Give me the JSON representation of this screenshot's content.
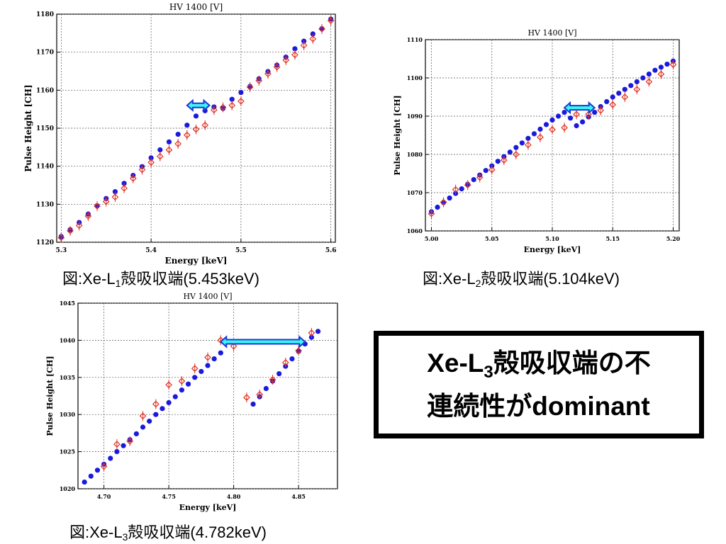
{
  "captions": {
    "c1": {
      "prefix": "図:Xe-L",
      "sub": "1",
      "suffix": "殻吸収端(5.453keV)"
    },
    "c2": {
      "prefix": "図:Xe-L",
      "sub": "2",
      "suffix": "殻吸収端(5.104keV)"
    },
    "c3": {
      "prefix": "図:Xe-L",
      "sub": "3",
      "suffix": "殻吸収端(4.782keV)"
    }
  },
  "callout": {
    "line1_prefix": "Xe-L",
    "line1_sub": "3",
    "line1_suffix": "殻吸収端の不",
    "line2": "連続性がdominant"
  },
  "colors": {
    "data_points": "#1a1adc",
    "reference_points": "#e03020",
    "arrow": "#1a3ad0",
    "arrow_cyan": "#3df5f5"
  },
  "chart_data": [
    {
      "type": "scatter",
      "title": "HV 1400 [V]",
      "xlabel": "Energy [keV]",
      "ylabel": "Pulse Height [CH]",
      "xlim": [
        5.295,
        5.605
      ],
      "ylim": [
        1120,
        1180
      ],
      "xticks": [
        5.3,
        5.4,
        5.5,
        5.6
      ],
      "xtick_labels": [
        "5.3",
        "5.4",
        "5.5",
        "5.6"
      ],
      "yticks": [
        1120,
        1130,
        1140,
        1150,
        1160,
        1170,
        1180
      ],
      "grid": true,
      "series": [
        {
          "marker": "filled-circle",
          "color": "blue",
          "x": [
            5.3,
            5.31,
            5.32,
            5.33,
            5.34,
            5.35,
            5.36,
            5.37,
            5.38,
            5.39,
            5.4,
            5.41,
            5.42,
            5.43,
            5.44,
            5.45,
            5.46,
            5.47,
            5.48,
            5.49,
            5.5,
            5.51,
            5.52,
            5.53,
            5.54,
            5.55,
            5.56,
            5.57,
            5.58,
            5.59,
            5.6
          ],
          "y": [
            1121.5,
            1123.3,
            1125.2,
            1127.4,
            1129.6,
            1131.5,
            1133.3,
            1135.5,
            1137.6,
            1139.9,
            1142.2,
            1144.3,
            1146.4,
            1148.4,
            1150.8,
            1153.2,
            1154.6,
            1155.6,
            1155.2,
            1157.6,
            1159.4,
            1161.0,
            1163.0,
            1164.9,
            1166.6,
            1168.7,
            1170.9,
            1172.9,
            1174.8,
            1176.2,
            1178.7
          ]
        },
        {
          "marker": "open-diamond",
          "color": "red",
          "x": [
            5.3,
            5.31,
            5.32,
            5.33,
            5.34,
            5.35,
            5.36,
            5.37,
            5.38,
            5.39,
            5.4,
            5.41,
            5.42,
            5.43,
            5.44,
            5.45,
            5.46,
            5.47,
            5.48,
            5.49,
            5.5,
            5.51,
            5.52,
            5.53,
            5.54,
            5.55,
            5.56,
            5.57,
            5.58,
            5.59,
            5.6
          ],
          "y": [
            1121.2,
            1123.0,
            1124.4,
            1126.9,
            1129.5,
            1130.7,
            1131.9,
            1134.2,
            1136.8,
            1139.1,
            1141.0,
            1142.6,
            1144.3,
            1145.9,
            1148.2,
            1149.7,
            1150.8,
            1154.8,
            1155.5,
            1156.0,
            1157.1,
            1160.8,
            1162.5,
            1164.3,
            1166.1,
            1167.9,
            1169.3,
            1171.8,
            1173.5,
            1176.1,
            1178.3
          ]
        }
      ],
      "annotation": {
        "type": "double-arrow",
        "x": [
          5.44,
          5.465
        ],
        "y": 1156
      }
    },
    {
      "type": "scatter",
      "title": "HV 1400 [V]",
      "xlabel": "Energy [keV]",
      "ylabel": "Pulse Height [CH]",
      "xlim": [
        4.995,
        5.205
      ],
      "ylim": [
        1060,
        1110
      ],
      "xticks": [
        5.0,
        5.05,
        5.1,
        5.15,
        5.2
      ],
      "xtick_labels": [
        "5.00",
        "5.05",
        "5.10",
        "5.15",
        "5.20"
      ],
      "yticks": [
        1060,
        1070,
        1080,
        1090,
        1100,
        1110
      ],
      "grid": true,
      "series": [
        {
          "marker": "filled-circle",
          "color": "blue",
          "x": [
            5.0,
            5.005,
            5.01,
            5.015,
            5.02,
            5.025,
            5.03,
            5.035,
            5.04,
            5.045,
            5.05,
            5.055,
            5.06,
            5.065,
            5.07,
            5.075,
            5.08,
            5.085,
            5.09,
            5.095,
            5.1,
            5.105,
            5.11,
            5.115,
            5.12,
            5.125,
            5.13,
            5.135,
            5.14,
            5.145,
            5.15,
            5.155,
            5.16,
            5.165,
            5.17,
            5.175,
            5.18,
            5.185,
            5.19,
            5.195,
            5.2
          ],
          "y": [
            1065.0,
            1066.2,
            1067.4,
            1068.6,
            1069.8,
            1071.0,
            1072.2,
            1073.4,
            1074.6,
            1075.8,
            1077.0,
            1078.2,
            1079.4,
            1080.6,
            1081.8,
            1083.0,
            1084.2,
            1085.4,
            1086.6,
            1087.8,
            1089.0,
            1090.0,
            1091.0,
            1089.5,
            1087.5,
            1088.5,
            1089.8,
            1091.0,
            1092.5,
            1093.8,
            1095.0,
            1096.0,
            1097.0,
            1098.0,
            1099.0,
            1100.0,
            1101.0,
            1102.0,
            1102.8,
            1103.6,
            1104.4
          ]
        },
        {
          "marker": "open-diamond",
          "color": "red",
          "x": [
            5.0,
            5.01,
            5.02,
            5.03,
            5.04,
            5.05,
            5.06,
            5.07,
            5.08,
            5.09,
            5.1,
            5.11,
            5.12,
            5.13,
            5.14,
            5.15,
            5.16,
            5.17,
            5.18,
            5.19,
            5.2
          ],
          "y": [
            1064.5,
            1067.5,
            1070.8,
            1072.0,
            1074.0,
            1076.0,
            1078.5,
            1080.0,
            1082.5,
            1084.5,
            1086.5,
            1087.0,
            1090.5,
            1090.5,
            1091.5,
            1093.0,
            1095.0,
            1097.0,
            1099.0,
            1101.0,
            1103.5
          ]
        }
      ],
      "annotation": {
        "type": "double-arrow",
        "x": [
          5.11,
          5.135
        ],
        "y": 1092.2
      }
    },
    {
      "type": "scatter",
      "title": "HV 1400 [V]",
      "xlabel": "Energy [keV]",
      "ylabel": "Pulse Height [CH]",
      "xlim": [
        4.68,
        4.88
      ],
      "ylim": [
        1020,
        1045
      ],
      "xticks": [
        4.7,
        4.75,
        4.8,
        4.85
      ],
      "xtick_labels": [
        "4.70",
        "4.75",
        "4.80",
        "4.85"
      ],
      "yticks": [
        1020,
        1025,
        1030,
        1035,
        1040,
        1045
      ],
      "grid": true,
      "series": [
        {
          "marker": "filled-circle",
          "color": "blue",
          "x": [
            4.685,
            4.69,
            4.695,
            4.7,
            4.705,
            4.71,
            4.715,
            4.72,
            4.725,
            4.73,
            4.735,
            4.74,
            4.745,
            4.75,
            4.755,
            4.76,
            4.765,
            4.77,
            4.775,
            4.78,
            4.785,
            4.79,
            4.815,
            4.82,
            4.825,
            4.83,
            4.835,
            4.84,
            4.845,
            4.85,
            4.855,
            4.86,
            4.865
          ],
          "y": [
            1020.9,
            1021.7,
            1022.5,
            1023.3,
            1024.1,
            1025.0,
            1025.8,
            1026.6,
            1027.4,
            1028.3,
            1029.1,
            1030.0,
            1030.8,
            1031.6,
            1032.4,
            1033.3,
            1034.1,
            1035.0,
            1035.8,
            1036.6,
            1037.5,
            1038.3,
            1031.4,
            1032.4,
            1033.5,
            1034.5,
            1035.5,
            1036.5,
            1037.5,
            1038.5,
            1039.5,
            1040.4,
            1041.2
          ]
        },
        {
          "marker": "open-diamond",
          "color": "red",
          "x": [
            4.7,
            4.71,
            4.72,
            4.73,
            4.74,
            4.75,
            4.76,
            4.77,
            4.78,
            4.79,
            4.8,
            4.81,
            4.82,
            4.83,
            4.84,
            4.85,
            4.86
          ],
          "y": [
            1023.0,
            1026.0,
            1026.4,
            1029.8,
            1031.4,
            1034.0,
            1034.5,
            1036.2,
            1037.7,
            1040.0,
            1039.2,
            1032.3,
            1032.7,
            1034.7,
            1037.0,
            1038.6,
            1041.0
          ]
        }
      ],
      "annotation": {
        "type": "double-arrow",
        "x": [
          4.79,
          4.855
        ],
        "y": 1039.8
      }
    }
  ]
}
